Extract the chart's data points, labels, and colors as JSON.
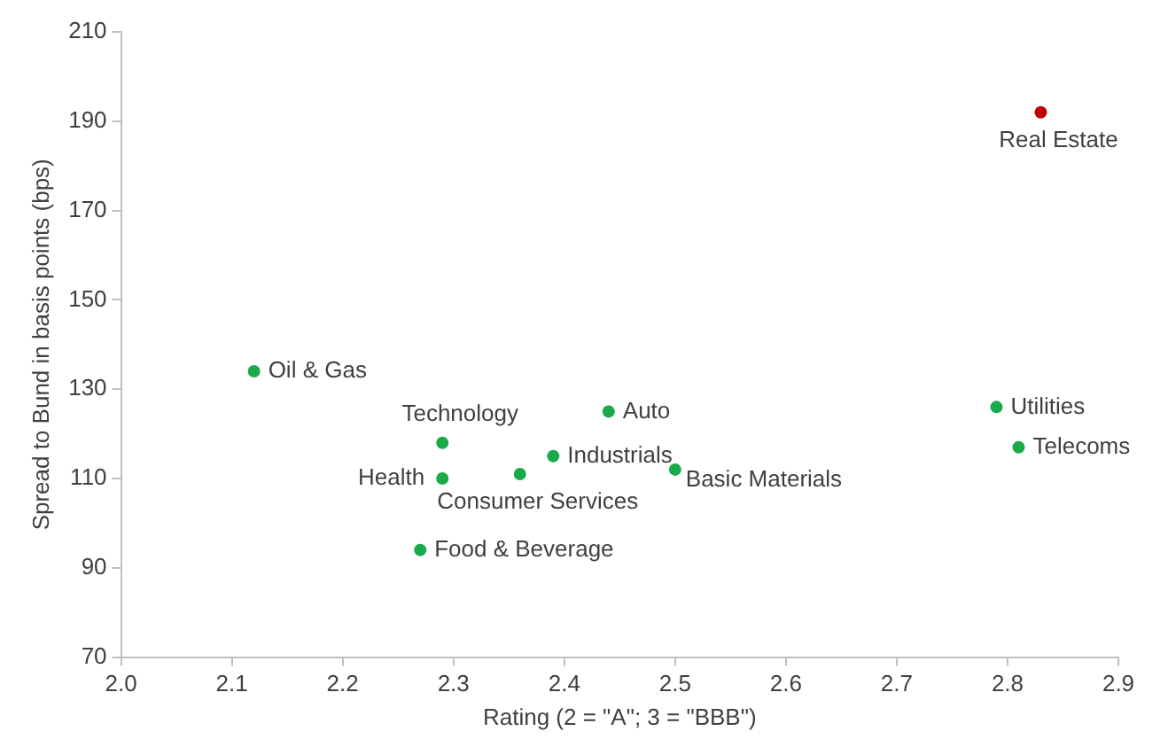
{
  "chart_data": {
    "type": "scatter",
    "xlabel": "Rating (2 = \"A\"; 3 = \"BBB\")",
    "ylabel": "Spread to Bund in basis points (bps)",
    "x": [
      2.12,
      2.27,
      2.29,
      2.29,
      2.36,
      2.39,
      2.44,
      2.5,
      2.79,
      2.81,
      2.83
    ],
    "values": [
      134,
      94,
      118,
      110,
      111,
      115,
      125,
      112,
      126,
      117,
      192
    ],
    "colors": [
      "#1aaa4a",
      "#1aaa4a",
      "#1aaa4a",
      "#1aaa4a",
      "#1aaa4a",
      "#1aaa4a",
      "#1aaa4a",
      "#1aaa4a",
      "#1aaa4a",
      "#1aaa4a",
      "#c00000"
    ],
    "annotations": [
      {
        "text": "Oil & Gas",
        "x": 2.12,
        "y": 134
      },
      {
        "text": "Food & Beverage",
        "x": 2.27,
        "y": 94
      },
      {
        "text": "Technology",
        "x": 2.29,
        "y": 118
      },
      {
        "text": "Health",
        "x": 2.29,
        "y": 110
      },
      {
        "text": "Consumer Services",
        "x": 2.36,
        "y": 111
      },
      {
        "text": "Industrials",
        "x": 2.39,
        "y": 115
      },
      {
        "text": "Auto",
        "x": 2.44,
        "y": 125
      },
      {
        "text": "Basic Materials",
        "x": 2.5,
        "y": 112
      },
      {
        "text": "Utilities",
        "x": 2.79,
        "y": 126
      },
      {
        "text": "Telecoms",
        "x": 2.81,
        "y": 117
      },
      {
        "text": "Real Estate",
        "x": 2.83,
        "y": 192
      }
    ],
    "xlim": [
      2.0,
      2.9
    ],
    "xticks": [
      {
        "value": 2,
        "label": "2.0"
      },
      2.1,
      2.2,
      2.3,
      2.4,
      2.5,
      2.6,
      2.7,
      2.8,
      2.9
    ],
    "ylim": [
      70,
      210
    ],
    "yticks": [
      70,
      90,
      110,
      130,
      150,
      170,
      190,
      210
    ],
    "grid": false,
    "legend": false,
    "marker": "circle"
  }
}
